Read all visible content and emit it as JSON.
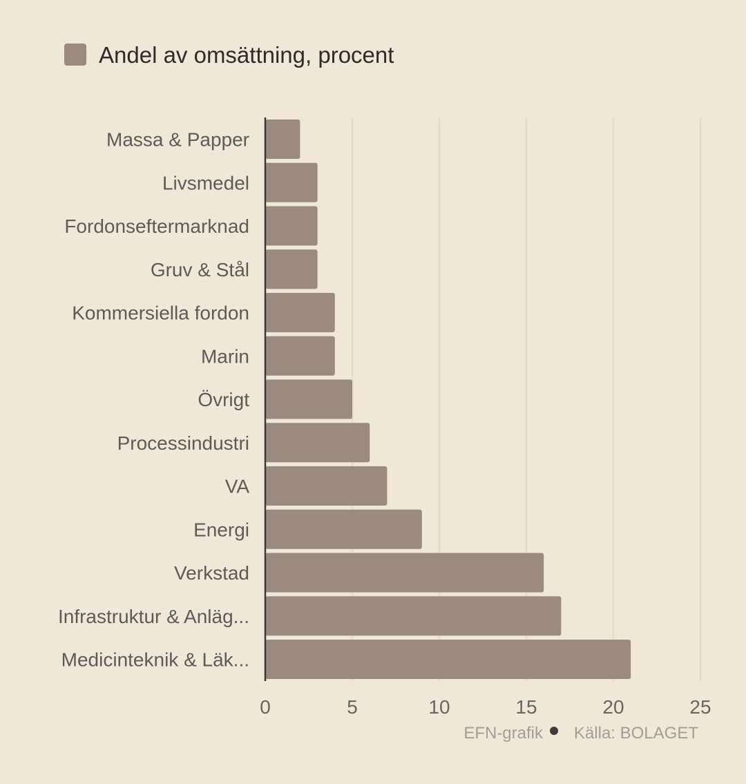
{
  "chart_data": {
    "type": "bar",
    "orientation": "horizontal",
    "categories": [
      "Massa & Papper",
      "Livsmedel",
      "Fordonseftermarknad",
      "Gruv & Stål",
      "Kommersiella fordon",
      "Marin",
      "Övrigt",
      "Processindustri",
      "VA",
      "Energi",
      "Verkstad",
      "Infrastruktur & Anläg...",
      "Medicinteknik & Läk..."
    ],
    "series": [
      {
        "name": "Andel av omsättning, procent",
        "values": [
          2,
          3,
          3,
          3,
          4,
          4,
          5,
          6,
          7,
          9,
          16,
          17,
          21
        ],
        "color": "#9a8a80"
      }
    ],
    "xlim": [
      0,
      25
    ],
    "xticks": [
      "0",
      "5",
      "10",
      "15",
      "20",
      "25"
    ],
    "grid": true,
    "legend_position": "top-left"
  },
  "footer": {
    "credit": "EFN-grafik",
    "source": "Källa: BOLAGET"
  },
  "colors": {
    "background": "#efe7d7",
    "bar": "#9a8a80",
    "axis": "#3a3734",
    "grid": "#e6dccb"
  }
}
